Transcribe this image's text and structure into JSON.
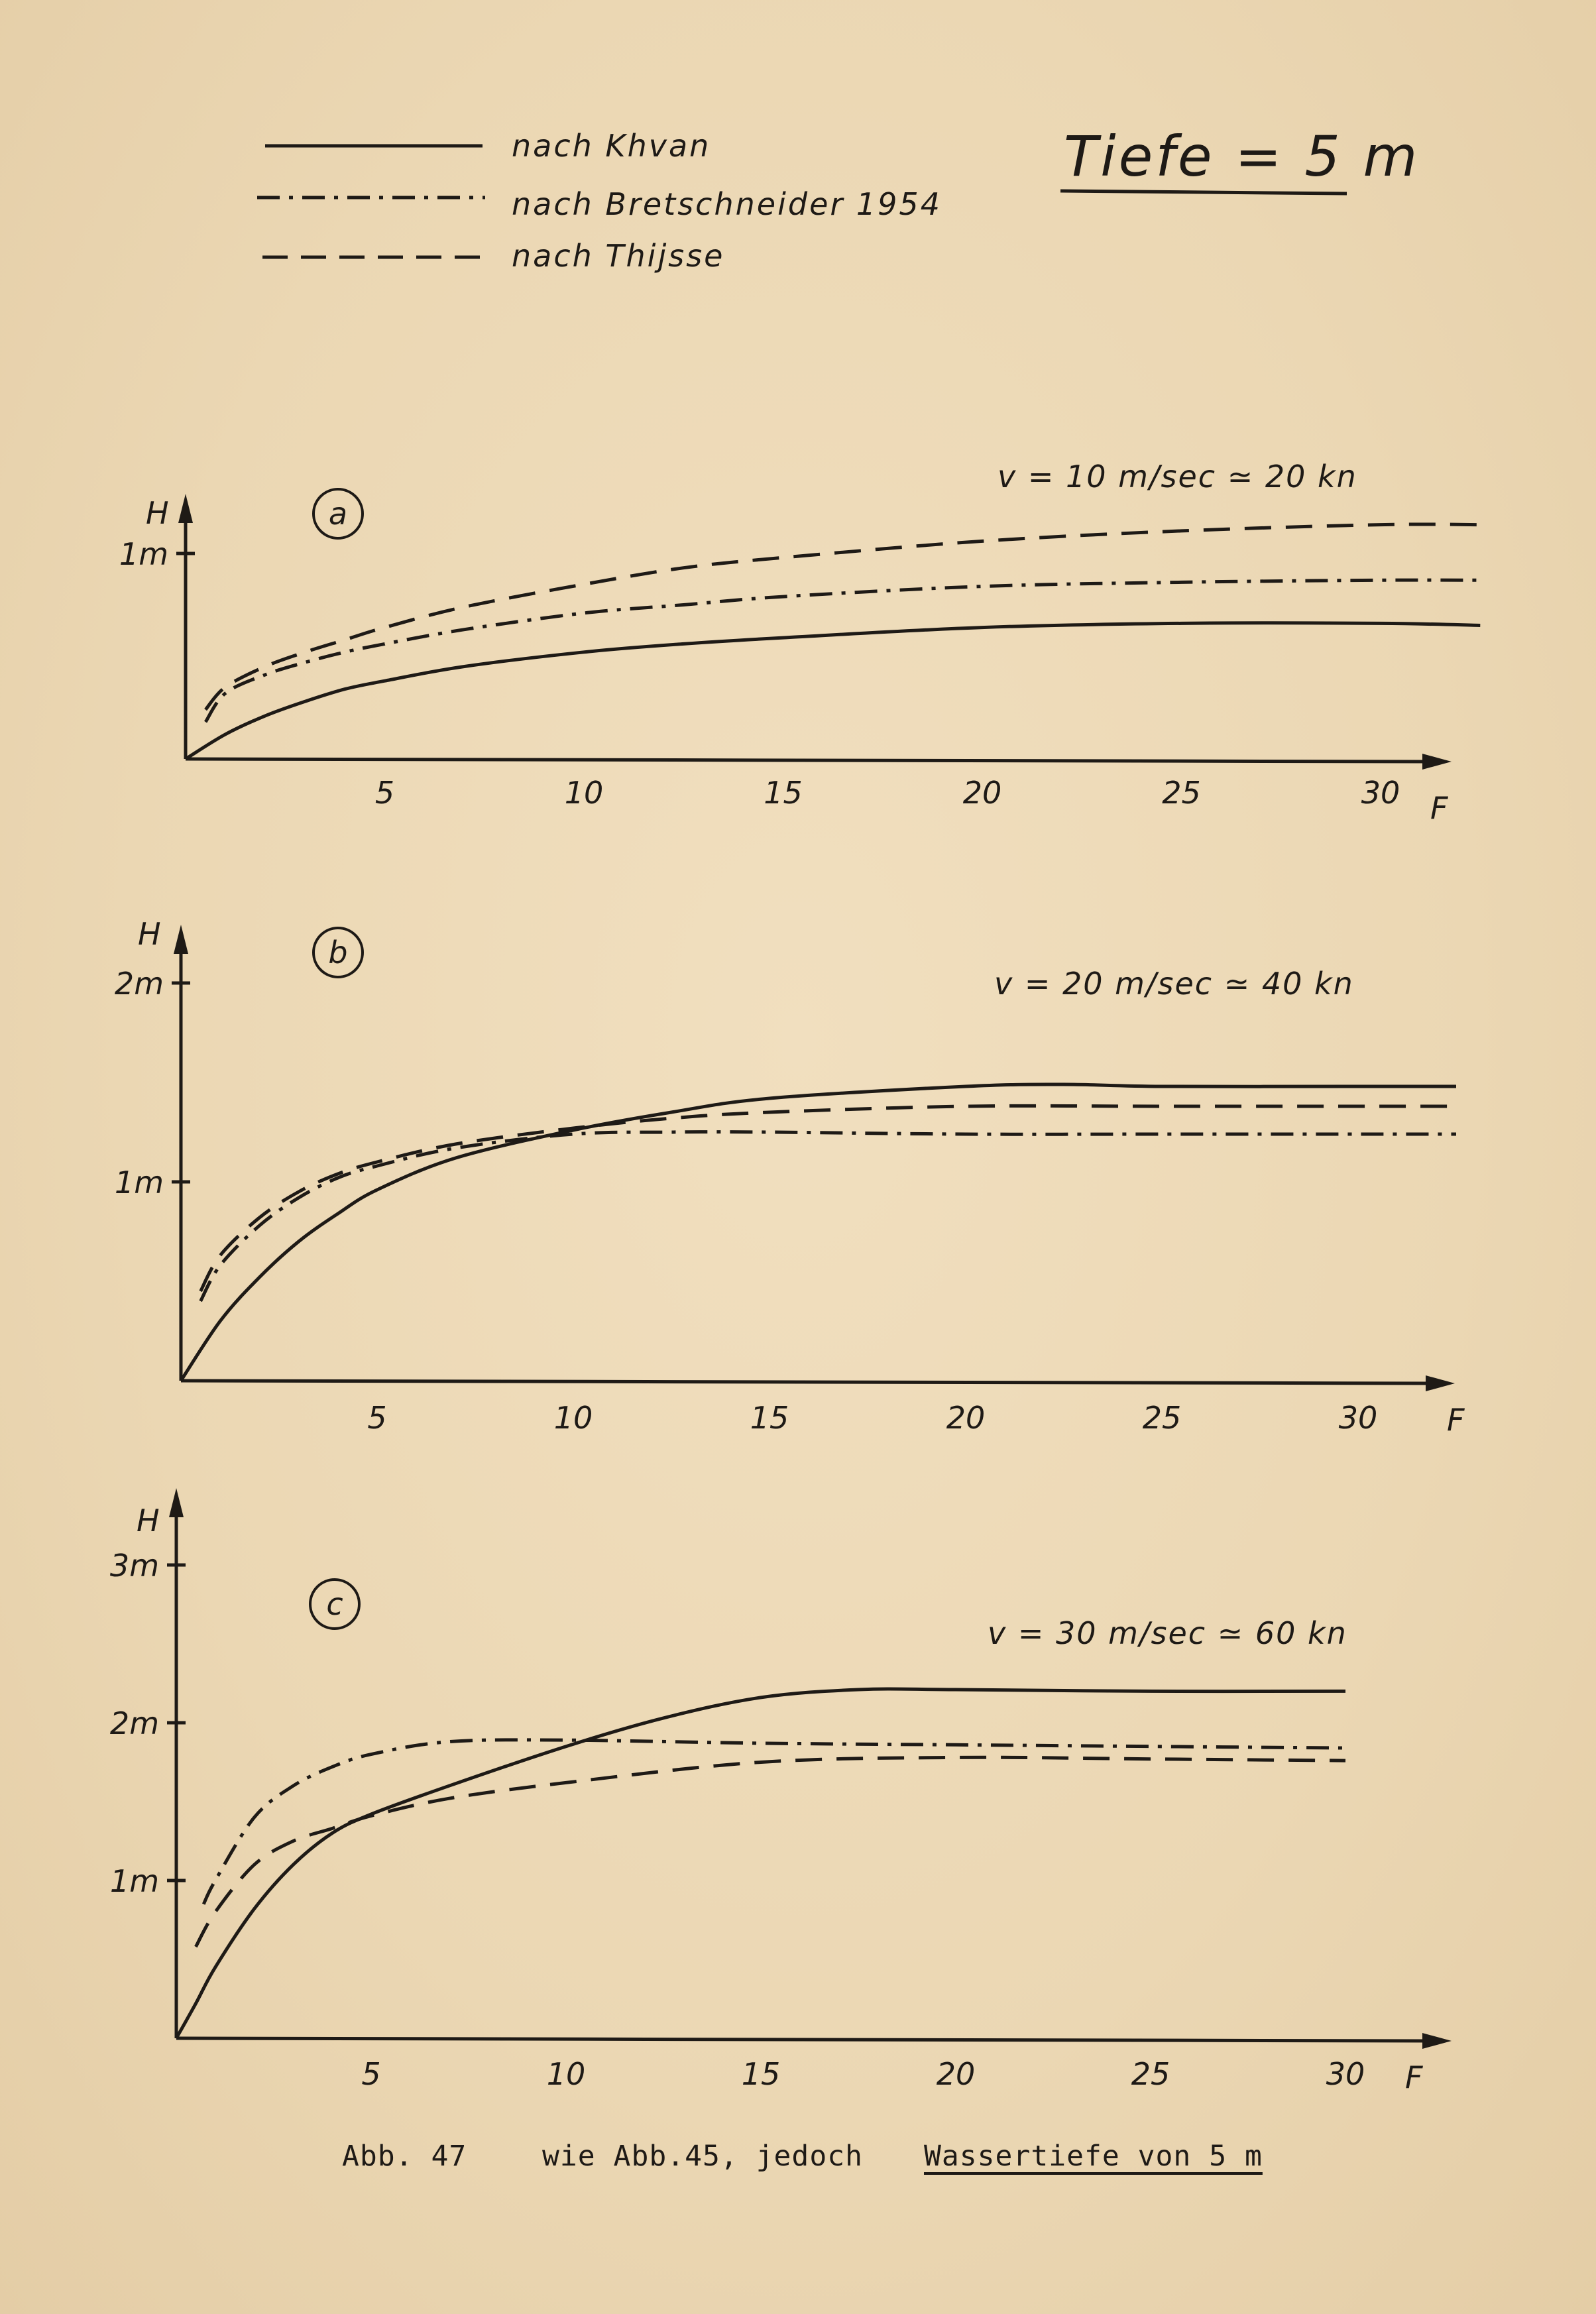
{
  "page": {
    "title": "Tiefe = 5 m",
    "caption_label": "Abb. 47",
    "caption_text": "wie Abb.45, jedoch",
    "caption_underlined": "Wassertiefe von 5 m"
  },
  "legend": [
    {
      "label": "nach Khvan",
      "style": "solid"
    },
    {
      "label": "nach Bretschneider 1954",
      "style": "dashdot"
    },
    {
      "label": "nach Thijsse",
      "style": "dashed"
    }
  ],
  "colors": {
    "ink": "#1e1a16",
    "paper": "#ecd9b6"
  },
  "chart_data": [
    {
      "type": "line",
      "panel_label": "a",
      "condition": "v = 10 m/sec ≃ 20 kn",
      "xlabel": "F",
      "ylabel": "H",
      "x_ticks": [
        5,
        10,
        15,
        20,
        25,
        30
      ],
      "y_ticks": [
        {
          "value": 1,
          "label": "1m"
        }
      ],
      "xlim": [
        0,
        32.5
      ],
      "ylim": [
        0,
        1.45
      ],
      "series": [
        {
          "name": "nach Khvan",
          "style": "solid",
          "x": [
            0,
            1,
            2,
            3,
            4,
            5,
            7,
            10,
            12.5,
            15,
            20,
            25,
            30,
            32.5
          ],
          "y": [
            0,
            0.12,
            0.21,
            0.28,
            0.34,
            0.38,
            0.45,
            0.52,
            0.56,
            0.59,
            0.64,
            0.66,
            0.66,
            0.65
          ]
        },
        {
          "name": "nach Bretschneider 1954",
          "style": "dashdot",
          "x": [
            0.5,
            1,
            2,
            3,
            4,
            5,
            7,
            10,
            12.5,
            15,
            20,
            25,
            30,
            32.5
          ],
          "y": [
            0.18,
            0.32,
            0.41,
            0.47,
            0.52,
            0.56,
            0.63,
            0.71,
            0.75,
            0.79,
            0.84,
            0.86,
            0.87,
            0.87
          ]
        },
        {
          "name": "nach Thijsse",
          "style": "dashed",
          "x": [
            0.5,
            1,
            2,
            3,
            4,
            5,
            7,
            10,
            12.5,
            15,
            20,
            25,
            30,
            32.5
          ],
          "y": [
            0.24,
            0.35,
            0.45,
            0.52,
            0.58,
            0.64,
            0.74,
            0.85,
            0.93,
            0.98,
            1.06,
            1.11,
            1.14,
            1.14
          ]
        }
      ]
    },
    {
      "type": "line",
      "panel_label": "b",
      "condition": "v = 20 m/sec ≃ 40 kn",
      "xlabel": "F",
      "ylabel": "H",
      "x_ticks": [
        5,
        10,
        15,
        20,
        25,
        30
      ],
      "y_ticks": [
        {
          "value": 1,
          "label": "1m"
        },
        {
          "value": 2,
          "label": "2m"
        }
      ],
      "xlim": [
        0,
        32.5
      ],
      "ylim": [
        0,
        2.3
      ],
      "series": [
        {
          "name": "nach Khvan",
          "style": "solid",
          "x": [
            0,
            1,
            2,
            3,
            4,
            5,
            7,
            10,
            12.5,
            15,
            20,
            22.5,
            25,
            30,
            32.5
          ],
          "y": [
            0,
            0.3,
            0.52,
            0.7,
            0.84,
            0.96,
            1.12,
            1.26,
            1.35,
            1.42,
            1.48,
            1.49,
            1.48,
            1.48,
            1.48
          ]
        },
        {
          "name": "nach Bretschneider 1954",
          "style": "dashdot",
          "x": [
            0.5,
            1,
            2,
            3,
            4,
            5,
            7,
            10,
            12.5,
            15,
            20,
            25,
            30,
            32.5
          ],
          "y": [
            0.4,
            0.58,
            0.78,
            0.92,
            1.02,
            1.08,
            1.17,
            1.24,
            1.25,
            1.25,
            1.24,
            1.24,
            1.24,
            1.24
          ]
        },
        {
          "name": "nach Thijsse",
          "style": "dashed",
          "x": [
            0.5,
            1,
            2,
            3,
            4,
            5,
            7,
            10,
            12.5,
            15,
            20,
            25,
            30,
            32.5
          ],
          "y": [
            0.45,
            0.63,
            0.82,
            0.95,
            1.04,
            1.1,
            1.19,
            1.27,
            1.32,
            1.35,
            1.38,
            1.38,
            1.38,
            1.38
          ]
        }
      ]
    },
    {
      "type": "line",
      "panel_label": "c",
      "condition": "v = 30 m/sec ≃ 60 kn",
      "xlabel": "F",
      "ylabel": "H",
      "x_ticks": [
        5,
        10,
        15,
        20,
        25,
        30
      ],
      "y_ticks": [
        {
          "value": 1,
          "label": "1m"
        },
        {
          "value": 2,
          "label": "2m"
        },
        {
          "value": 3,
          "label": "3m"
        }
      ],
      "xlim": [
        0,
        32.5
      ],
      "ylim": [
        0,
        3.45
      ],
      "series": [
        {
          "name": "nach Khvan",
          "style": "solid",
          "x": [
            0,
            0.5,
            1,
            2,
            3,
            4,
            5,
            7,
            10,
            12.5,
            15,
            17.5,
            20,
            25,
            30
          ],
          "y": [
            0,
            0.22,
            0.45,
            0.82,
            1.1,
            1.3,
            1.42,
            1.6,
            1.85,
            2.03,
            2.16,
            2.21,
            2.21,
            2.2,
            2.2
          ]
        },
        {
          "name": "nach Bretschneider 1954",
          "style": "dashdot",
          "x": [
            0.7,
            1,
            2,
            3,
            4,
            5,
            7,
            10,
            15,
            20,
            25,
            30
          ],
          "y": [
            0.85,
            1.0,
            1.4,
            1.6,
            1.72,
            1.8,
            1.88,
            1.89,
            1.87,
            1.86,
            1.85,
            1.84
          ]
        },
        {
          "name": "nach Thijsse",
          "style": "dashed",
          "x": [
            0.5,
            1,
            2,
            3,
            4,
            5,
            7,
            10,
            15,
            20,
            25,
            30
          ],
          "y": [
            0.58,
            0.8,
            1.1,
            1.25,
            1.33,
            1.41,
            1.52,
            1.62,
            1.75,
            1.78,
            1.77,
            1.76
          ]
        }
      ]
    }
  ]
}
